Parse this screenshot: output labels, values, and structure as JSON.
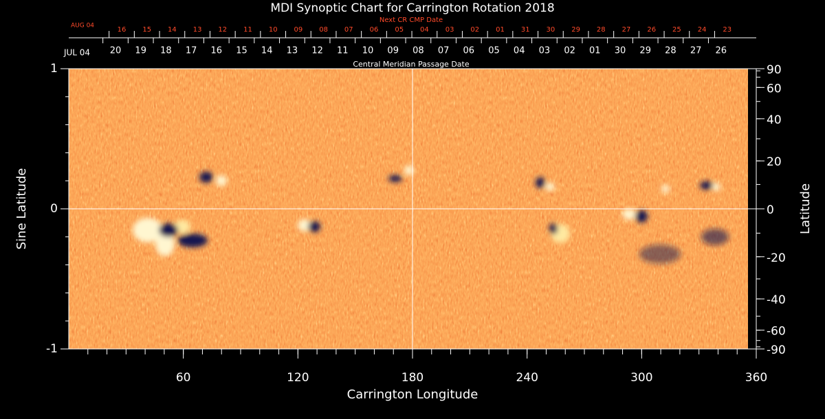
{
  "chart_data": {
    "type": "synoptic",
    "title": "MDI Synoptic Chart for Carrington Rotation 2018",
    "xlabel": "Carrington Longitude",
    "ylabel": "Sine Latitude",
    "y2label": "Latitude",
    "xlim": [
      0,
      360
    ],
    "xticks": [
      60,
      120,
      180,
      240,
      300,
      360
    ],
    "ylim": [
      -1,
      1
    ],
    "yticks": [
      -1,
      0,
      1
    ],
    "y2lim": [
      -90,
      90
    ],
    "y2ticks": [
      90,
      60,
      40,
      20,
      0,
      -20,
      -40,
      -60,
      -90
    ],
    "y2scale": "sine",
    "top_axes": [
      {
        "label": "Next CR CMP Date",
        "start_label": "AUG 04",
        "color": "#ff4a2a",
        "categories": [
          "16",
          "15",
          "14",
          "13",
          "12",
          "11",
          "10",
          "09",
          "08",
          "07",
          "06",
          "05",
          "04",
          "03",
          "02",
          "01",
          "31",
          "30",
          "29",
          "28",
          "27",
          "26",
          "25",
          "24",
          "23"
        ]
      },
      {
        "label": "Central Meridian Passage Date",
        "start_label": "JUL 04",
        "color": "#ffffff",
        "categories": [
          "20",
          "19",
          "18",
          "17",
          "16",
          "15",
          "14",
          "13",
          "12",
          "11",
          "10",
          "09",
          "08",
          "07",
          "06",
          "05",
          "04",
          "03",
          "02",
          "01",
          "30",
          "29",
          "28",
          "27",
          "26"
        ]
      }
    ]
  }
}
